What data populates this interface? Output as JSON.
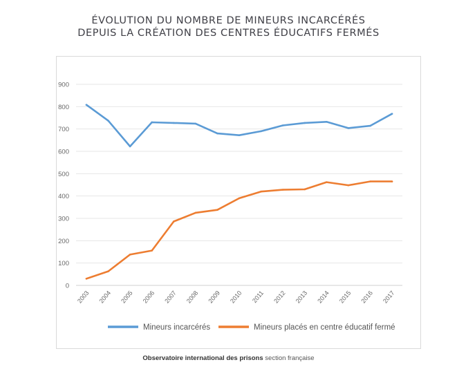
{
  "header": {
    "title_line1": "ÉVOLUTION DU NOMBRE DE MINEURS INCARCÉRÉS",
    "title_line2": "DEPUIS LA CRÉATION DES CENTRES ÉDUCATIFS FERMÉS"
  },
  "footer": {
    "org": "Observatoire international des prisons",
    "section": "section française"
  },
  "chart_data": {
    "type": "line",
    "title": "ÉVOLUTION DU NOMBRE DE MINEURS INCARCÉRÉS DEPUIS LA CRÉATION DES CENTRES ÉDUCATIFS FERMÉS",
    "xlabel": "",
    "ylabel": "",
    "ylim": [
      0,
      900
    ],
    "yticks": [
      0,
      100,
      200,
      300,
      400,
      500,
      600,
      700,
      800,
      900
    ],
    "grid": true,
    "legend_position": "bottom",
    "categories": [
      "2003",
      "2004",
      "2005",
      "2006",
      "2007",
      "2008",
      "2009",
      "2010",
      "2011",
      "2012",
      "2013",
      "2014",
      "2015",
      "2016",
      "2017"
    ],
    "series": [
      {
        "name": "Mineurs incarcérés",
        "color": "#5b9bd5",
        "values": [
          808,
          737,
          622,
          730,
          727,
          724,
          680,
          672,
          690,
          716,
          727,
          732,
          704,
          714,
          768
        ]
      },
      {
        "name": "Mineurs placés en centre éducatif fermé",
        "color": "#ed7d31",
        "values": [
          30,
          63,
          138,
          156,
          286,
          325,
          338,
          390,
          420,
          428,
          430,
          462,
          448,
          465,
          465
        ]
      }
    ]
  }
}
